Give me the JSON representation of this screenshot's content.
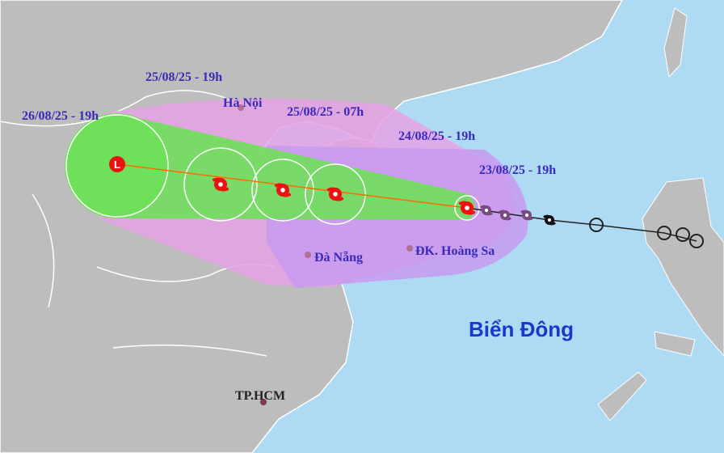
{
  "labels": [
    "25/08/25 - 19h",
    "Hà Nội",
    "25/08/25 - 07h",
    "26/08/25 - 19h",
    "24/08/25 - 19h",
    "23/08/25 - 19h",
    "Đà Nẵng",
    "ĐK. Hoàng Sa",
    "Biển Đông",
    "TP.HCM",
    "L"
  ]
}
